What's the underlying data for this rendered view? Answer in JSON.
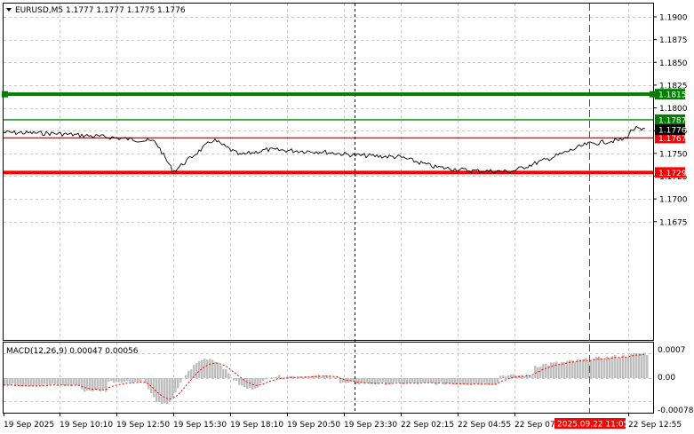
{
  "header": {
    "symbol_timeframe": "EURUSD,M5",
    "ohlc": "1.1777 1.1777 1.1775 1.1776"
  },
  "price_axis": {
    "ticks": [
      "1.1900",
      "1.1875",
      "1.1850",
      "1.1825",
      "1.1800",
      "1.1775",
      "1.1750",
      "1.1725",
      "1.1700",
      "1.1675"
    ],
    "tick_values": [
      1.19,
      1.1875,
      1.185,
      1.1825,
      1.18,
      1.1775,
      1.175,
      1.1725,
      1.17,
      1.1675
    ]
  },
  "levels": [
    {
      "label": "1.1815",
      "value": 1.1815,
      "color": "#008000",
      "style": "thick"
    },
    {
      "label": "1.1787",
      "value": 1.1787,
      "color": "#008000",
      "style": "thin"
    },
    {
      "label": "1.1767",
      "value": 1.1767,
      "color": "#ff0000",
      "style": "thin"
    },
    {
      "label": "1.1729",
      "value": 1.1729,
      "color": "#ff0000",
      "style": "thick"
    }
  ],
  "current_price": {
    "label": "1.1776",
    "value": 1.1776
  },
  "macd": {
    "label": "MACD(12,26,9) 0.00047 0.00056",
    "ticks": [
      "0.0007",
      "0.00",
      "-0.00078"
    ]
  },
  "time_axis": {
    "labels": [
      "19 Sep 2025",
      "19 Sep 10:10",
      "19 Sep 12:50",
      "19 Sep 15:30",
      "19 Sep 18:10",
      "19 Sep 20:50",
      "19 Sep 23:30",
      "22 Sep 02:15",
      "22 Sep 04:55",
      "22 Sep 07:",
      "22 Sep 12:55"
    ],
    "cursor_label": "2025.09.22 11:05"
  },
  "colors": {
    "price_line": "#000000",
    "macd_histogram": "#c0c0c0",
    "macd_signal": "#ff0000",
    "cursor_marker": "#ff0000",
    "grid": "#c8c8c8"
  },
  "chart_data": {
    "type": "line",
    "title": "EURUSD,M5",
    "series": [
      {
        "name": "EURUSD,M5",
        "x": [
          "19 Sep 2025",
          "19 Sep 10:10",
          "19 Sep 12:50",
          "19 Sep 15:30",
          "19 Sep 18:10",
          "19 Sep 20:50",
          "19 Sep 23:30",
          "22 Sep 02:15",
          "22 Sep 04:55",
          "22 Sep 07:",
          "22 Sep 12:55"
        ],
        "values": [
          1.1776,
          1.1768,
          1.1765,
          1.1765,
          1.1755,
          1.1756,
          1.1748,
          1.1738,
          1.1731,
          1.1748,
          1.1776
        ]
      }
    ],
    "ylim": [
      1.1665,
      1.191
    ],
    "grid": true
  }
}
